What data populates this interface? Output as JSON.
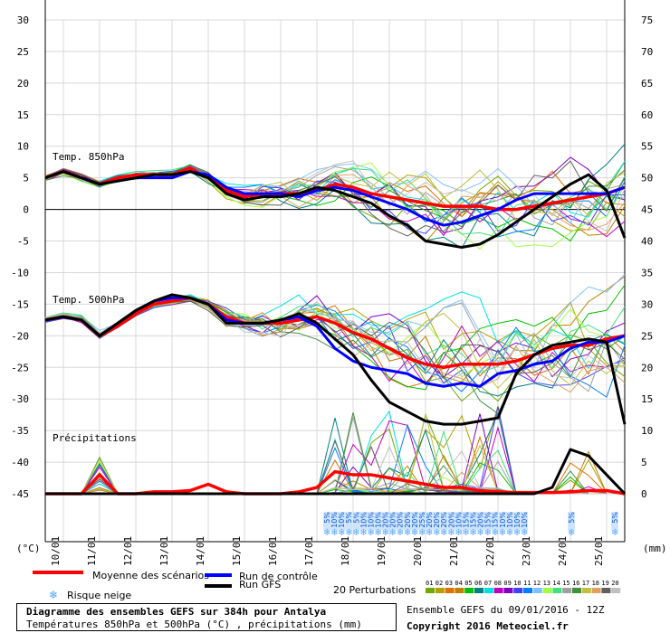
{
  "chart_data": {
    "type": "line",
    "left_axis": {
      "unit": "(°C)",
      "ticks": [
        30,
        25,
        20,
        15,
        10,
        5,
        0,
        -5,
        -10,
        -15,
        -20,
        -25,
        -30,
        -35,
        -40,
        -45
      ]
    },
    "right_axis": {
      "unit": "(mm)",
      "ticks": [
        75,
        70,
        65,
        60,
        55,
        50,
        45,
        40,
        35,
        30,
        25,
        20,
        15,
        10,
        5,
        0
      ]
    },
    "x_labels": [
      "10/01",
      "11/01",
      "12/01",
      "13/01",
      "14/01",
      "15/01",
      "16/01",
      "17/01",
      "18/01",
      "19/01",
      "20/01",
      "21/01",
      "22/01",
      "23/01",
      "24/01",
      "25/01"
    ],
    "x_range_days": [
      9.5,
      25.5
    ],
    "panel_labels": {
      "t850": "Temp. 850hPa",
      "t500": "Temp. 500hPa",
      "precip": "Précipitations"
    },
    "series": [
      {
        "name": "Moyenne des scénarios",
        "color": "#ff0000",
        "panel": "t850",
        "x": [
          9.5,
          10,
          10.5,
          11,
          11.5,
          12,
          12.5,
          13,
          13.5,
          14,
          14.5,
          15,
          15.5,
          16,
          16.5,
          17,
          17.5,
          18,
          18.5,
          19,
          19.5,
          20,
          20.5,
          21,
          21.5,
          22,
          22.5,
          23,
          23.5,
          24,
          24.5,
          25,
          25.5
        ],
        "y": [
          5,
          6,
          5,
          4,
          5,
          5.5,
          5.5,
          5.5,
          6.5,
          5,
          3,
          2,
          2.5,
          2.5,
          2.5,
          3,
          4,
          3.5,
          2.5,
          2,
          1.5,
          1,
          0.5,
          0.5,
          0.5,
          0,
          0,
          0.5,
          1,
          1.5,
          2,
          2.5,
          3.5
        ]
      },
      {
        "name": "Run de contrôle",
        "color": "#0000ff",
        "panel": "t850",
        "x": [
          9.5,
          10,
          10.5,
          11,
          11.5,
          12,
          12.5,
          13,
          13.5,
          14,
          14.5,
          15,
          15.5,
          16,
          16.5,
          17,
          17.5,
          18,
          18.5,
          19,
          19.5,
          20,
          20.5,
          21,
          21.5,
          22,
          22.5,
          23,
          23.5,
          24,
          24.5,
          25,
          25.5
        ],
        "y": [
          5,
          6,
          5,
          4,
          4.5,
          5,
          5,
          5,
          6,
          5.5,
          3.5,
          2.5,
          2.5,
          2.5,
          2,
          3,
          3.5,
          3,
          2,
          1,
          0,
          -1.5,
          -2.5,
          -2,
          -1,
          0,
          1.5,
          2.5,
          2.5,
          2.5,
          2.5,
          2.5,
          3.5
        ]
      },
      {
        "name": "Run GFS",
        "color": "#000000",
        "panel": "t850",
        "x": [
          9.5,
          10,
          10.5,
          11,
          11.5,
          12,
          12.5,
          13,
          13.5,
          14,
          14.5,
          15,
          15.5,
          16,
          16.5,
          17,
          17.5,
          18,
          18.5,
          19,
          19.5,
          20,
          20.5,
          21,
          21.5,
          22,
          22.5,
          23,
          23.5,
          24,
          24.5,
          25,
          25.5
        ],
        "y": [
          5,
          6,
          5,
          4,
          4.5,
          5,
          5.5,
          5.5,
          6,
          5,
          2.5,
          1.5,
          2,
          2,
          2.5,
          3.5,
          3,
          2,
          1,
          -1,
          -2.5,
          -5,
          -5.5,
          -6,
          -5.5,
          -4,
          -2,
          0,
          2,
          4,
          5.5,
          3,
          -4.5
        ]
      },
      {
        "name": "Moyenne des scénarios",
        "color": "#ff0000",
        "panel": "t500",
        "x": [
          9.5,
          10,
          10.5,
          11,
          11.5,
          12,
          12.5,
          13,
          13.5,
          14,
          14.5,
          15,
          15.5,
          16,
          16.5,
          17,
          17.5,
          18,
          18.5,
          19,
          19.5,
          20,
          20.5,
          21,
          21.5,
          22,
          22.5,
          23,
          23.5,
          24,
          24.5,
          25,
          25.5
        ],
        "y": [
          -17.5,
          -17,
          -17.5,
          -20,
          -18.5,
          -16.5,
          -15,
          -14.5,
          -14,
          -15,
          -17,
          -18,
          -18,
          -18,
          -17.5,
          -17,
          -18,
          -19.5,
          -20.5,
          -22,
          -23.5,
          -24.5,
          -25,
          -24.5,
          -24.5,
          -24.5,
          -24,
          -23,
          -22,
          -21.5,
          -21.5,
          -20.5,
          -20
        ]
      },
      {
        "name": "Run de contrôle",
        "color": "#0000ff",
        "panel": "t500",
        "x": [
          9.5,
          10,
          10.5,
          11,
          11.5,
          12,
          12.5,
          13,
          13.5,
          14,
          14.5,
          15,
          15.5,
          16,
          16.5,
          17,
          17.5,
          18,
          18.5,
          19,
          19.5,
          20,
          20.5,
          21,
          21.5,
          22,
          22.5,
          23,
          23.5,
          24,
          24.5,
          25,
          25.5
        ],
        "y": [
          -17.5,
          -17,
          -17.5,
          -20,
          -18,
          -16,
          -14.5,
          -14,
          -14,
          -15,
          -17.5,
          -18,
          -18,
          -17.5,
          -17,
          -18.5,
          -22,
          -24,
          -25,
          -25.5,
          -26,
          -27.5,
          -28,
          -27.5,
          -28,
          -26,
          -25.5,
          -24.5,
          -24,
          -22,
          -21,
          -21,
          -20
        ]
      },
      {
        "name": "Run GFS",
        "color": "#000000",
        "panel": "t500",
        "x": [
          9.5,
          10,
          10.5,
          11,
          11.5,
          12,
          12.5,
          13,
          13.5,
          14,
          14.5,
          15,
          15.5,
          16,
          16.5,
          17,
          17.5,
          18,
          18.5,
          19,
          19.5,
          20,
          20.5,
          21,
          21.5,
          22,
          22.5,
          23,
          23.5,
          24,
          24.5,
          25,
          25.5
        ],
        "y": [
          -17.5,
          -17,
          -17.5,
          -20,
          -18,
          -16,
          -14.5,
          -13.5,
          -14,
          -15,
          -18,
          -18,
          -18,
          -17.5,
          -16.5,
          -18,
          -20.5,
          -23,
          -27,
          -30.5,
          -32,
          -33.5,
          -34,
          -34,
          -33.5,
          -33,
          -26,
          -23,
          -21.5,
          -21,
          -20.5,
          -21,
          -34
        ]
      },
      {
        "name": "Moyenne des scénarios",
        "color": "#ff0000",
        "panel": "precip",
        "x": [
          9.5,
          10,
          10.5,
          11,
          11.5,
          12,
          12.5,
          13,
          13.5,
          14,
          14.5,
          15,
          15.5,
          16,
          16.5,
          17,
          17.5,
          18,
          18.5,
          19,
          19.5,
          20,
          20.5,
          21,
          21.5,
          22,
          22.5,
          23,
          23.5,
          24,
          24.5,
          25,
          25.5
        ],
        "y": [
          0,
          0,
          0,
          3,
          0,
          0,
          0.3,
          0.3,
          0.5,
          1.5,
          0.3,
          0,
          0,
          0,
          0.3,
          1,
          3.5,
          3,
          3,
          2.5,
          2,
          1.5,
          1,
          1,
          0.5,
          0.3,
          0.2,
          0.2,
          0.2,
          0.3,
          0.5,
          0.5,
          0
        ]
      },
      {
        "name": "Run GFS",
        "color": "#000000",
        "panel": "precip",
        "x": [
          9.5,
          10,
          10.5,
          11,
          11.5,
          12,
          12.5,
          13,
          13.5,
          14,
          14.5,
          15,
          15.5,
          16,
          16.5,
          17,
          17.5,
          18,
          18.5,
          19,
          19.5,
          20,
          20.5,
          21,
          21.5,
          22,
          22.5,
          23,
          23.5,
          24,
          24.5,
          25,
          25.5
        ],
        "y": [
          0,
          0,
          0,
          0,
          0,
          0,
          0,
          0,
          0,
          0,
          0,
          0,
          0,
          0,
          0,
          0,
          0,
          0,
          0,
          0,
          0,
          0,
          0,
          0,
          0,
          0,
          0,
          0,
          1,
          7,
          6,
          3,
          0
        ]
      }
    ],
    "snow_risk_labels": [
      "5%",
      "10%",
      "10%",
      "5%",
      "5%",
      "10%",
      "10%",
      "10%",
      "20%",
      "20%",
      "20%",
      "20%",
      "20%",
      "25%",
      "20%",
      "20%",
      "20%",
      "20%",
      "10%",
      "15%",
      "15%",
      "20%",
      "15%",
      "15%",
      "10%",
      "10%",
      "10%",
      "10%",
      "5%",
      "5%"
    ],
    "perturbations": {
      "labels": [
        "01",
        "02",
        "03",
        "04",
        "05",
        "06",
        "07",
        "08",
        "09",
        "10",
        "11",
        "12",
        "13",
        "14",
        "15",
        "16",
        "17",
        "18",
        "19",
        "20"
      ],
      "colors": [
        "#6fa800",
        "#b5a000",
        "#e07000",
        "#c08000",
        "#00c000",
        "#008080",
        "#00e0e0",
        "#c000c0",
        "#8000c0",
        "#4040ff",
        "#0080ff",
        "#80c0ff",
        "#a0ff40",
        "#40e080",
        "#a0a0a0",
        "#409040",
        "#c0c040",
        "#e0a060",
        "#606060",
        "#c0c0c0"
      ]
    }
  },
  "legend": {
    "mean": "Moyenne des scénarios",
    "control": "Run de contrôle",
    "gfs": "Run GFS",
    "snow": "Risque neige",
    "perturbations": "20 Perturbations"
  },
  "footer": {
    "title": "Diagramme des ensembles GEFS sur 384h pour Antalya",
    "subtitle": "Températures 850hPa et 500hPa (°C) , précipitations (mm)",
    "ensemble": "Ensemble GEFS du 09/01/2016 - 12Z",
    "copyright": "Copyright 2016 Meteociel.fr"
  }
}
